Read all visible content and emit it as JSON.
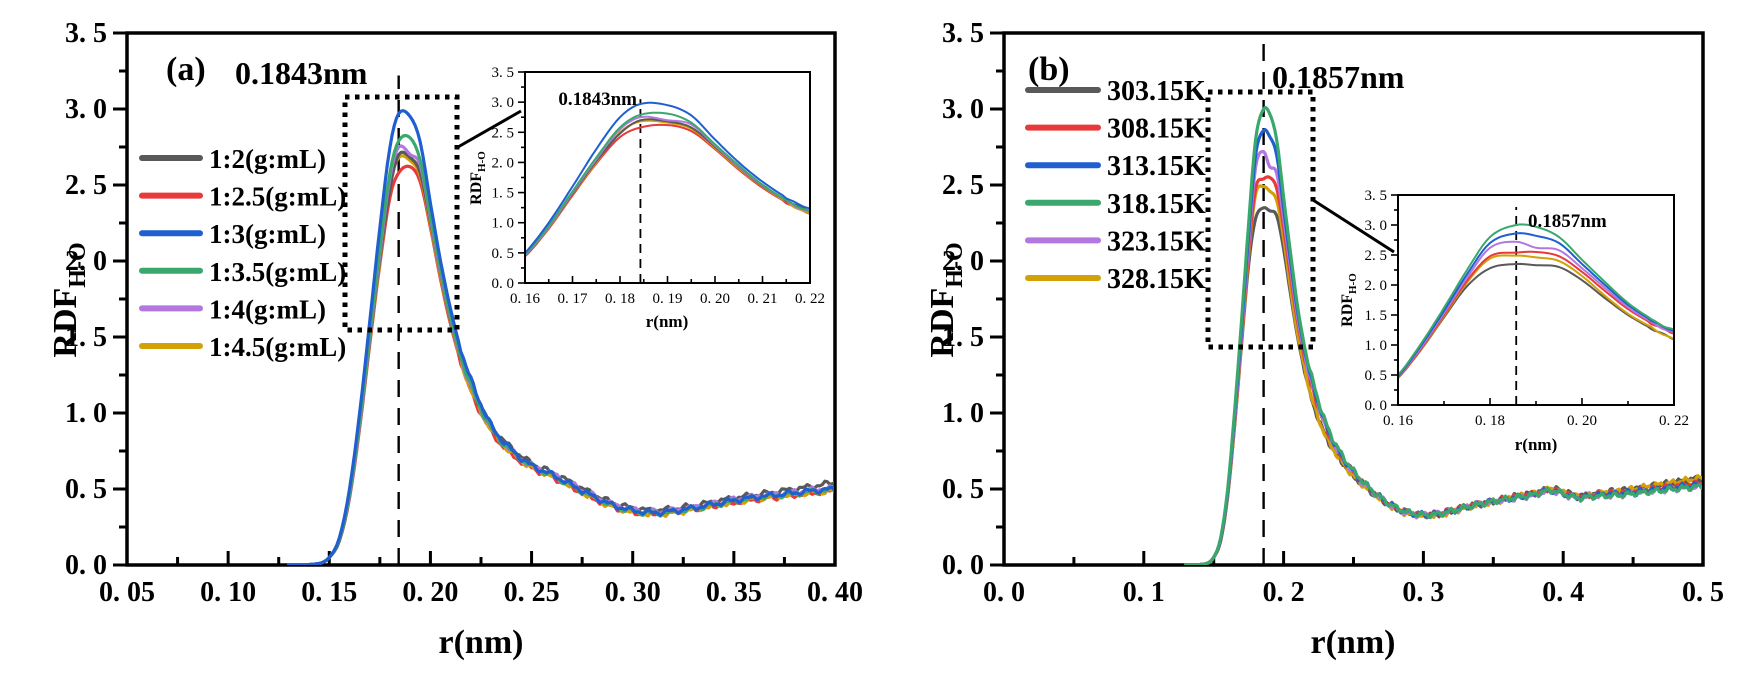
{
  "figure": {
    "background": "#ffffff",
    "axis_color": "#000000",
    "annotation_color": "#000000"
  },
  "chart_data": {
    "type": "line",
    "panels": [
      {
        "id": "a",
        "panel_label": "(a)",
        "peak_annotation": "0.1843nm",
        "peak_x": 0.1843,
        "xlabel": "r(nm)",
        "ylabel_main": "RDF",
        "ylabel_sub": "H-O",
        "xlim": [
          0.05,
          0.4
        ],
        "ylim": [
          0.0,
          3.5
        ],
        "xticks": [
          0.05,
          0.1,
          0.15,
          0.2,
          0.25,
          0.3,
          0.35,
          0.4
        ],
        "xtick_labels": [
          "0. 05",
          "0. 10",
          "0. 15",
          "0. 20",
          "0. 25",
          "0. 30",
          "0. 35",
          "0. 40"
        ],
        "yticks": [
          0.0,
          0.5,
          1.0,
          1.5,
          2.0,
          2.5,
          3.0,
          3.5
        ],
        "ytick_labels": [
          "0. 0",
          "0. 5",
          "1. 0",
          "1. 5",
          "2. 0",
          "2. 5",
          "3. 0",
          "3. 5"
        ],
        "legend": [
          {
            "label": "1:2(g:mL)",
            "color": "#595959"
          },
          {
            "label": "1:2.5(g:mL)",
            "color": "#e8393b"
          },
          {
            "label": "1:3(g:mL)",
            "color": "#1f5fd0"
          },
          {
            "label": "1:3.5(g:mL)",
            "color": "#3aa86c"
          },
          {
            "label": "1:4(g:mL)",
            "color": "#b278e0"
          },
          {
            "label": "1:4.5(g:mL)",
            "color": "#d2a106"
          }
        ],
        "x": [
          0.05,
          0.1,
          0.13,
          0.145,
          0.15,
          0.155,
          0.16,
          0.165,
          0.17,
          0.175,
          0.18,
          0.1843,
          0.19,
          0.195,
          0.2,
          0.205,
          0.21,
          0.215,
          0.22,
          0.23,
          0.24,
          0.25,
          0.26,
          0.27,
          0.28,
          0.29,
          0.3,
          0.31,
          0.32,
          0.33,
          0.34,
          0.35,
          0.36,
          0.37,
          0.38,
          0.39,
          0.4
        ],
        "series": [
          {
            "name": "1:2(g:mL)",
            "color": "#595959",
            "y": [
              0,
              0,
              0,
              0.01,
              0.05,
              0.16,
              0.45,
              0.92,
              1.48,
              2.02,
              2.48,
              2.7,
              2.68,
              2.58,
              2.26,
              1.92,
              1.61,
              1.37,
              1.18,
              0.92,
              0.77,
              0.67,
              0.61,
              0.54,
              0.47,
              0.41,
              0.375,
              0.36,
              0.37,
              0.39,
              0.415,
              0.44,
              0.46,
              0.48,
              0.5,
              0.52,
              0.545
            ]
          },
          {
            "name": "1:2.5(g:mL)",
            "color": "#e8393b",
            "y": [
              0,
              0,
              0,
              0.01,
              0.05,
              0.16,
              0.44,
              0.9,
              1.45,
              1.98,
              2.42,
              2.58,
              2.62,
              2.52,
              2.22,
              1.88,
              1.58,
              1.34,
              1.14,
              0.88,
              0.73,
              0.64,
              0.58,
              0.51,
              0.44,
              0.385,
              0.35,
              0.34,
              0.35,
              0.37,
              0.39,
              0.41,
              0.43,
              0.445,
              0.46,
              0.475,
              0.49
            ]
          },
          {
            "name": "1:3(g:mL)",
            "color": "#1f5fd0",
            "y": [
              0,
              0,
              0,
              0.01,
              0.05,
              0.18,
              0.5,
              1.0,
              1.6,
              2.22,
              2.75,
              2.97,
              2.95,
              2.78,
              2.38,
              2.0,
              1.68,
              1.42,
              1.22,
              0.92,
              0.76,
              0.655,
              0.595,
              0.525,
              0.455,
              0.395,
              0.36,
              0.345,
              0.355,
              0.375,
              0.4,
              0.425,
              0.445,
              0.46,
              0.475,
              0.49,
              0.5
            ]
          },
          {
            "name": "1:3.5(g:mL)",
            "color": "#3aa86c",
            "y": [
              0,
              0,
              0,
              0.01,
              0.05,
              0.17,
              0.47,
              0.95,
              1.52,
              2.08,
              2.58,
              2.79,
              2.81,
              2.66,
              2.3,
              1.95,
              1.63,
              1.38,
              1.18,
              0.9,
              0.75,
              0.65,
              0.59,
              0.52,
              0.45,
              0.39,
              0.355,
              0.34,
              0.35,
              0.37,
              0.395,
              0.42,
              0.44,
              0.455,
              0.47,
              0.485,
              0.495
            ]
          },
          {
            "name": "1:4(g:mL)",
            "color": "#b278e0",
            "y": [
              0,
              0,
              0,
              0.01,
              0.05,
              0.17,
              0.46,
              0.93,
              1.5,
              2.05,
              2.55,
              2.75,
              2.7,
              2.63,
              2.28,
              1.93,
              1.62,
              1.37,
              1.17,
              0.9,
              0.75,
              0.655,
              0.6,
              0.53,
              0.46,
              0.4,
              0.365,
              0.35,
              0.36,
              0.38,
              0.405,
              0.43,
              0.45,
              0.465,
              0.48,
              0.495,
              0.505
            ]
          },
          {
            "name": "1:4.5(g:mL)",
            "color": "#d2a106",
            "y": [
              0,
              0,
              0,
              0.01,
              0.05,
              0.16,
              0.45,
              0.91,
              1.47,
              2.0,
              2.5,
              2.68,
              2.66,
              2.56,
              2.24,
              1.9,
              1.6,
              1.35,
              1.15,
              0.89,
              0.74,
              0.645,
              0.585,
              0.515,
              0.445,
              0.385,
              0.35,
              0.335,
              0.345,
              0.365,
              0.39,
              0.415,
              0.435,
              0.45,
              0.465,
              0.48,
              0.49
            ]
          }
        ],
        "inset": {
          "annotation": "0.1843nm",
          "xlabel": "r(nm)",
          "ylabel_main": "RDF",
          "ylabel_sub": "H-O",
          "xlim": [
            0.16,
            0.22
          ],
          "ylim": [
            0.0,
            3.5
          ],
          "xticks": [
            0.16,
            0.17,
            0.18,
            0.19,
            0.2,
            0.21,
            0.22
          ],
          "xtick_labels": [
            "0. 16",
            "0. 17",
            "0. 18",
            "0. 19",
            "0. 20",
            "0. 21",
            "0. 22"
          ],
          "yticks": [
            0.0,
            0.5,
            1.0,
            1.5,
            2.0,
            2.5,
            3.0,
            3.5
          ],
          "ytick_labels": [
            "0. 0",
            "0. 5",
            "1. 0",
            "1. 5",
            "2. 0",
            "2. 5",
            "3. 0",
            "3. 5"
          ]
        }
      },
      {
        "id": "b",
        "panel_label": "(b)",
        "peak_annotation": "0.1857nm",
        "peak_x": 0.1857,
        "xlabel": "r(nm)",
        "ylabel_main": "RDF",
        "ylabel_sub": "H-O",
        "xlim": [
          0.0,
          0.5
        ],
        "ylim": [
          0.0,
          3.5
        ],
        "xticks": [
          0.0,
          0.1,
          0.2,
          0.3,
          0.4,
          0.5
        ],
        "xtick_labels": [
          "0. 0",
          "0. 1",
          "0. 2",
          "0. 3",
          "0. 4",
          "0. 5"
        ],
        "yticks": [
          0.0,
          0.5,
          1.0,
          1.5,
          2.0,
          2.5,
          3.0,
          3.5
        ],
        "ytick_labels": [
          "0. 0",
          "0. 5",
          "1. 0",
          "1. 5",
          "2. 0",
          "2. 5",
          "3. 0",
          "3. 5"
        ],
        "legend": [
          {
            "label": "303.15K",
            "color": "#595959"
          },
          {
            "label": "308.15K",
            "color": "#e8393b"
          },
          {
            "label": "313.15K",
            "color": "#1f5fd0"
          },
          {
            "label": "318.15K",
            "color": "#3aa86c"
          },
          {
            "label": "323.15K",
            "color": "#b278e0"
          },
          {
            "label": "328.15K",
            "color": "#d2a106"
          }
        ],
        "x": [
          0.0,
          0.1,
          0.13,
          0.145,
          0.15,
          0.155,
          0.16,
          0.165,
          0.17,
          0.175,
          0.18,
          0.1857,
          0.19,
          0.195,
          0.2,
          0.205,
          0.21,
          0.215,
          0.22,
          0.23,
          0.24,
          0.25,
          0.26,
          0.27,
          0.28,
          0.29,
          0.3,
          0.31,
          0.32,
          0.33,
          0.34,
          0.35,
          0.36,
          0.37,
          0.38,
          0.39,
          0.4,
          0.41,
          0.42,
          0.43,
          0.44,
          0.45,
          0.46,
          0.47,
          0.48,
          0.49,
          0.5
        ],
        "series": [
          {
            "name": "303.15K",
            "color": "#595959",
            "y": [
              0,
              0,
              0,
              0.01,
              0.05,
              0.16,
              0.45,
              0.92,
              1.46,
              1.98,
              2.28,
              2.35,
              2.33,
              2.3,
              2.08,
              1.78,
              1.5,
              1.28,
              1.09,
              0.85,
              0.7,
              0.585,
              0.5,
              0.43,
              0.375,
              0.34,
              0.33,
              0.335,
              0.355,
              0.38,
              0.4,
              0.42,
              0.44,
              0.46,
              0.475,
              0.5,
              0.485,
              0.455,
              0.465,
              0.48,
              0.49,
              0.5,
              0.515,
              0.53,
              0.545,
              0.56,
              0.575
            ]
          },
          {
            "name": "308.15K",
            "color": "#e8393b",
            "y": [
              0,
              0,
              0,
              0.01,
              0.05,
              0.16,
              0.46,
              0.94,
              1.5,
              2.07,
              2.48,
              2.54,
              2.55,
              2.48,
              2.22,
              1.9,
              1.6,
              1.37,
              1.18,
              0.91,
              0.73,
              0.61,
              0.515,
              0.44,
              0.38,
              0.345,
              0.335,
              0.34,
              0.36,
              0.385,
              0.405,
              0.42,
              0.44,
              0.455,
              0.47,
              0.49,
              0.475,
              0.45,
              0.46,
              0.47,
              0.475,
              0.485,
              0.495,
              0.51,
              0.52,
              0.53,
              0.54
            ]
          },
          {
            "name": "313.15K",
            "color": "#1f5fd0",
            "y": [
              0,
              0,
              0,
              0.01,
              0.05,
              0.17,
              0.48,
              0.99,
              1.57,
              2.18,
              2.7,
              2.86,
              2.82,
              2.7,
              2.35,
              2.0,
              1.67,
              1.42,
              1.22,
              0.93,
              0.74,
              0.615,
              0.52,
              0.44,
              0.38,
              0.345,
              0.33,
              0.335,
              0.355,
              0.38,
              0.4,
              0.42,
              0.435,
              0.45,
              0.465,
              0.49,
              0.47,
              0.445,
              0.455,
              0.465,
              0.47,
              0.48,
              0.49,
              0.5,
              0.51,
              0.52,
              0.53
            ]
          },
          {
            "name": "318.15K",
            "color": "#3aa86c",
            "y": [
              0,
              0,
              0,
              0.01,
              0.05,
              0.18,
              0.5,
              1.02,
              1.62,
              2.25,
              2.8,
              3.0,
              2.97,
              2.8,
              2.42,
              2.05,
              1.7,
              1.44,
              1.24,
              0.94,
              0.75,
              0.62,
              0.52,
              0.44,
              0.38,
              0.345,
              0.33,
              0.335,
              0.355,
              0.38,
              0.4,
              0.42,
              0.435,
              0.45,
              0.465,
              0.49,
              0.47,
              0.44,
              0.45,
              0.455,
              0.46,
              0.47,
              0.48,
              0.49,
              0.5,
              0.51,
              0.52
            ]
          },
          {
            "name": "323.15K",
            "color": "#b278e0",
            "y": [
              0,
              0,
              0,
              0.01,
              0.05,
              0.17,
              0.47,
              0.96,
              1.53,
              2.12,
              2.62,
              2.72,
              2.62,
              2.58,
              2.28,
              1.95,
              1.63,
              1.39,
              1.2,
              0.92,
              0.73,
              0.61,
              0.51,
              0.435,
              0.375,
              0.34,
              0.33,
              0.335,
              0.355,
              0.38,
              0.4,
              0.415,
              0.43,
              0.445,
              0.46,
              0.485,
              0.465,
              0.44,
              0.45,
              0.455,
              0.46,
              0.47,
              0.48,
              0.49,
              0.5,
              0.505,
              0.515
            ]
          },
          {
            "name": "328.15K",
            "color": "#d2a106",
            "y": [
              0,
              0,
              0,
              0.01,
              0.05,
              0.16,
              0.455,
              0.93,
              1.48,
              2.04,
              2.44,
              2.49,
              2.46,
              2.4,
              2.15,
              1.82,
              1.52,
              1.3,
              1.1,
              0.85,
              0.7,
              0.585,
              0.5,
              0.43,
              0.37,
              0.335,
              0.325,
              0.33,
              0.35,
              0.375,
              0.395,
              0.415,
              0.435,
              0.455,
              0.47,
              0.5,
              0.48,
              0.45,
              0.46,
              0.475,
              0.485,
              0.5,
              0.515,
              0.53,
              0.545,
              0.56,
              0.575
            ]
          }
        ],
        "inset": {
          "annotation": "0.1857nm",
          "xlabel": "r(nm)",
          "ylabel_main": "RDF",
          "ylabel_sub": "H-O",
          "xlim": [
            0.16,
            0.22
          ],
          "ylim": [
            0.0,
            3.5
          ],
          "xticks": [
            0.16,
            0.18,
            0.2,
            0.22
          ],
          "xtick_labels": [
            "0. 16",
            "0. 18",
            "0. 20",
            "0. 22"
          ],
          "yticks": [
            0.0,
            0.5,
            1.0,
            1.5,
            2.0,
            2.5,
            3.0,
            3.5
          ],
          "ytick_labels": [
            "0. 0",
            "0. 5",
            "1. 0",
            "1. 5",
            "2. 0",
            "2. 5",
            "3. 0",
            "3. 5"
          ]
        }
      }
    ]
  }
}
